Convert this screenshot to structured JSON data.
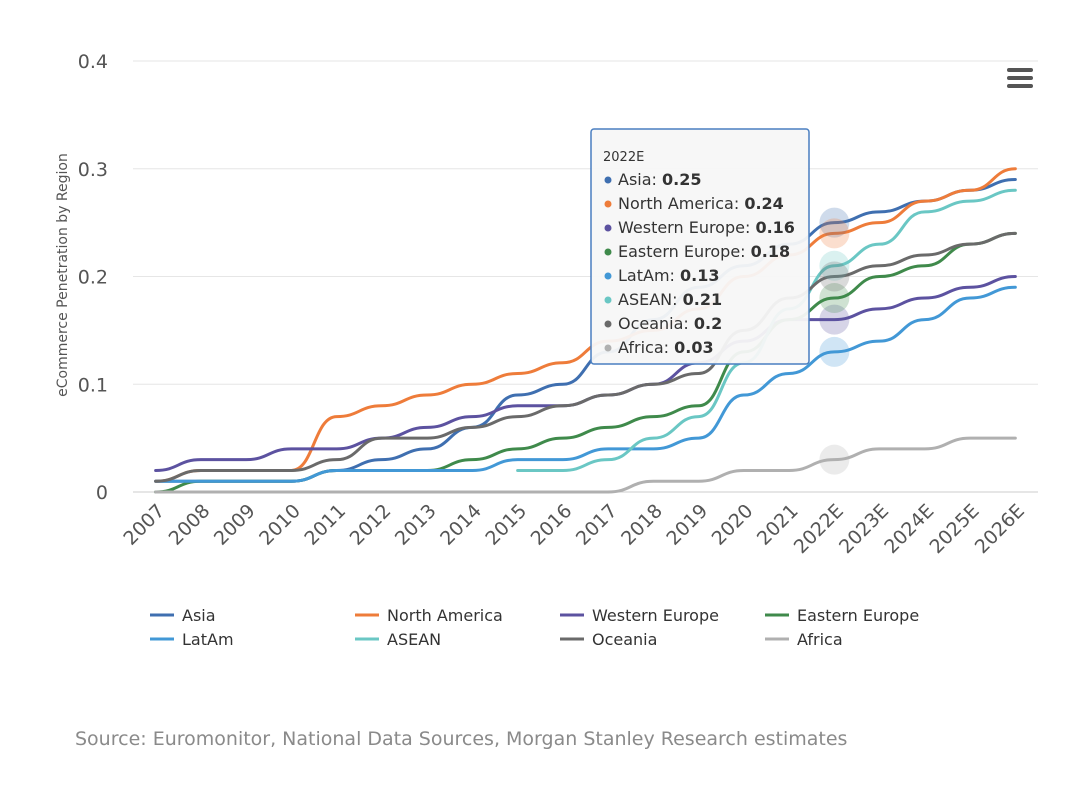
{
  "chart_data": {
    "type": "line",
    "title": "",
    "ylabel": "eCommerce Penetration by Region",
    "xlabel": "",
    "ylim": [
      0,
      0.4
    ],
    "yticks": [
      "0",
      "0.1",
      "0.2",
      "0.3",
      "0.4"
    ],
    "categories": [
      "2007",
      "2008",
      "2009",
      "2010",
      "2011",
      "2012",
      "2013",
      "2014",
      "2015",
      "2016",
      "2017",
      "2018",
      "2019",
      "2020",
      "2021",
      "2022E",
      "2023E",
      "2024E",
      "2025E",
      "2026E"
    ],
    "grid": true,
    "legend_position": "bottom",
    "series": [
      {
        "name": "Asia",
        "color": "#3f6fb0",
        "values": [
          0.01,
          0.01,
          0.01,
          0.01,
          0.02,
          0.03,
          0.04,
          0.06,
          0.09,
          0.1,
          0.13,
          0.16,
          0.19,
          0.21,
          0.23,
          0.25,
          0.26,
          0.27,
          0.28,
          0.29
        ]
      },
      {
        "name": "North America",
        "color": "#ee7c3a",
        "values": [
          0.01,
          0.02,
          0.02,
          0.02,
          0.07,
          0.08,
          0.09,
          0.1,
          0.11,
          0.12,
          0.14,
          0.15,
          0.17,
          0.2,
          0.22,
          0.24,
          0.25,
          0.27,
          0.28,
          0.3
        ]
      },
      {
        "name": "Western Europe",
        "color": "#5c52a0",
        "values": [
          0.02,
          0.03,
          0.03,
          0.04,
          0.04,
          0.05,
          0.06,
          0.07,
          0.08,
          0.08,
          0.09,
          0.1,
          0.12,
          0.14,
          0.16,
          0.16,
          0.17,
          0.18,
          0.19,
          0.2
        ]
      },
      {
        "name": "Eastern Europe",
        "color": "#3f8a4b",
        "values": [
          0.0,
          0.01,
          0.01,
          0.01,
          0.02,
          0.02,
          0.02,
          0.03,
          0.04,
          0.05,
          0.06,
          0.07,
          0.08,
          0.13,
          0.16,
          0.18,
          0.2,
          0.21,
          0.23,
          0.24
        ]
      },
      {
        "name": "LatAm",
        "color": "#4298d6",
        "values": [
          0.01,
          0.01,
          0.01,
          0.01,
          0.02,
          0.02,
          0.02,
          0.02,
          0.03,
          0.03,
          0.04,
          0.04,
          0.05,
          0.09,
          0.11,
          0.13,
          0.14,
          0.16,
          0.18,
          0.19
        ]
      },
      {
        "name": "ASEAN",
        "color": "#6ac7c4",
        "values": [
          null,
          null,
          null,
          null,
          null,
          null,
          null,
          null,
          0.02,
          0.02,
          0.03,
          0.05,
          0.07,
          0.12,
          0.17,
          0.21,
          0.23,
          0.26,
          0.27,
          0.28
        ]
      },
      {
        "name": "Oceania",
        "color": "#6a6a6a",
        "values": [
          0.01,
          0.02,
          0.02,
          0.02,
          0.03,
          0.05,
          0.05,
          0.06,
          0.07,
          0.08,
          0.09,
          0.1,
          0.11,
          0.15,
          0.18,
          0.2,
          0.21,
          0.22,
          0.23,
          0.24
        ]
      },
      {
        "name": "Africa",
        "color": "#b0b0b0",
        "values": [
          0.0,
          0.0,
          0.0,
          0.0,
          0.0,
          0.0,
          0.0,
          0.0,
          0.0,
          0.0,
          0.0,
          0.01,
          0.01,
          0.02,
          0.02,
          0.03,
          0.04,
          0.04,
          0.05,
          0.05
        ]
      }
    ],
    "tooltip": {
      "category": "2022E",
      "index": 15,
      "rows": [
        {
          "name": "Asia",
          "value": "0.25"
        },
        {
          "name": "North America",
          "value": "0.24"
        },
        {
          "name": "Western Europe",
          "value": "0.16"
        },
        {
          "name": "Eastern Europe",
          "value": "0.18"
        },
        {
          "name": "LatAm",
          "value": "0.13"
        },
        {
          "name": "ASEAN",
          "value": "0.21"
        },
        {
          "name": "Oceania",
          "value": "0.2"
        },
        {
          "name": "Africa",
          "value": "0.03"
        }
      ]
    }
  },
  "source": "Source: Euromonitor, National Data Sources, Morgan Stanley Research estimates",
  "menu": {
    "icon": "hamburger-menu-icon"
  }
}
